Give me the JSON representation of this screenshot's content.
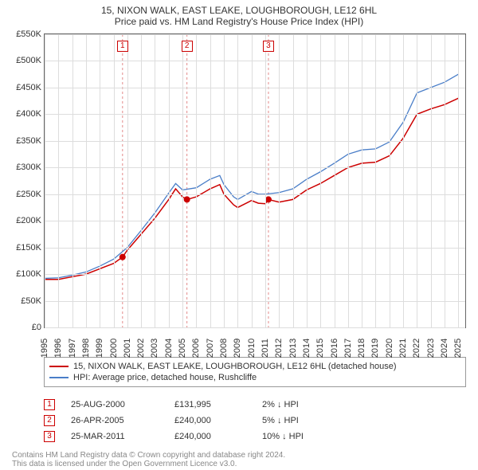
{
  "title_line1": "15, NIXON WALK, EAST LEAKE, LOUGHBOROUGH, LE12 6HL",
  "title_line2": "Price paid vs. HM Land Registry's House Price Index (HPI)",
  "chart": {
    "type": "line",
    "background_color": "#ffffff",
    "grid_color": "#dddddd",
    "border_color": "#666666",
    "xlim": [
      1995,
      2025.5
    ],
    "ylim": [
      0,
      550000
    ],
    "ytick_step": 50000,
    "ytick_labels": [
      "£0",
      "£50K",
      "£100K",
      "£150K",
      "£200K",
      "£250K",
      "£300K",
      "£350K",
      "£400K",
      "£450K",
      "£500K",
      "£550K"
    ],
    "xtick_step": 1,
    "xtick_years": [
      1995,
      1996,
      1997,
      1998,
      1999,
      2000,
      2001,
      2002,
      2003,
      2004,
      2005,
      2006,
      2007,
      2008,
      2009,
      2010,
      2011,
      2012,
      2013,
      2014,
      2015,
      2016,
      2017,
      2018,
      2019,
      2020,
      2021,
      2022,
      2023,
      2024,
      2025
    ],
    "label_fontsize": 11,
    "title_fontsize": 12,
    "series": [
      {
        "name": "property",
        "label": "15, NIXON WALK, EAST LEAKE, LOUGHBOROUGH, LE12 6HL (detached house)",
        "color": "#cc0000",
        "line_width": 1.5,
        "data": [
          [
            1995,
            90000
          ],
          [
            1996,
            90000
          ],
          [
            1997,
            95000
          ],
          [
            1998,
            100000
          ],
          [
            1999,
            110000
          ],
          [
            2000,
            120000
          ],
          [
            2000.65,
            131995
          ],
          [
            2001,
            145000
          ],
          [
            2002,
            175000
          ],
          [
            2003,
            205000
          ],
          [
            2004,
            240000
          ],
          [
            2004.5,
            260000
          ],
          [
            2005,
            245000
          ],
          [
            2005.32,
            240000
          ],
          [
            2006,
            245000
          ],
          [
            2007,
            260000
          ],
          [
            2007.7,
            268000
          ],
          [
            2008,
            250000
          ],
          [
            2008.7,
            230000
          ],
          [
            2009,
            225000
          ],
          [
            2010,
            238000
          ],
          [
            2010.5,
            233000
          ],
          [
            2011,
            232000
          ],
          [
            2011.23,
            240000
          ],
          [
            2012,
            235000
          ],
          [
            2013,
            240000
          ],
          [
            2014,
            258000
          ],
          [
            2015,
            270000
          ],
          [
            2016,
            285000
          ],
          [
            2017,
            300000
          ],
          [
            2018,
            308000
          ],
          [
            2019,
            310000
          ],
          [
            2020,
            322000
          ],
          [
            2021,
            355000
          ],
          [
            2022,
            400000
          ],
          [
            2023,
            410000
          ],
          [
            2024,
            418000
          ],
          [
            2025,
            430000
          ]
        ]
      },
      {
        "name": "hpi",
        "label": "HPI: Average price, detached house, Rushcliffe",
        "color": "#4a7ec8",
        "line_width": 1.3,
        "data": [
          [
            1995,
            92000
          ],
          [
            1996,
            93000
          ],
          [
            1997,
            98000
          ],
          [
            1998,
            104000
          ],
          [
            1999,
            115000
          ],
          [
            2000,
            128000
          ],
          [
            2001,
            150000
          ],
          [
            2002,
            182000
          ],
          [
            2003,
            215000
          ],
          [
            2004,
            252000
          ],
          [
            2004.5,
            270000
          ],
          [
            2005,
            258000
          ],
          [
            2006,
            262000
          ],
          [
            2007,
            278000
          ],
          [
            2007.7,
            285000
          ],
          [
            2008,
            268000
          ],
          [
            2008.7,
            245000
          ],
          [
            2009,
            240000
          ],
          [
            2010,
            255000
          ],
          [
            2010.5,
            250000
          ],
          [
            2011,
            250000
          ],
          [
            2012,
            253000
          ],
          [
            2013,
            260000
          ],
          [
            2014,
            278000
          ],
          [
            2015,
            292000
          ],
          [
            2016,
            308000
          ],
          [
            2017,
            325000
          ],
          [
            2018,
            333000
          ],
          [
            2019,
            335000
          ],
          [
            2020,
            348000
          ],
          [
            2021,
            385000
          ],
          [
            2022,
            440000
          ],
          [
            2023,
            450000
          ],
          [
            2024,
            460000
          ],
          [
            2025,
            475000
          ]
        ]
      }
    ],
    "sale_markers": [
      {
        "n": "1",
        "x": 2000.65,
        "y": 131995,
        "vline_color": "#e38b8b"
      },
      {
        "n": "2",
        "x": 2005.32,
        "y": 240000,
        "vline_color": "#e38b8b"
      },
      {
        "n": "3",
        "x": 2011.23,
        "y": 240000,
        "vline_color": "#e38b8b"
      }
    ],
    "marker_color": "#cc0000",
    "marker_radius": 4
  },
  "legend": {
    "items": [
      {
        "color": "#cc0000",
        "label": "15, NIXON WALK, EAST LEAKE, LOUGHBOROUGH, LE12 6HL (detached house)"
      },
      {
        "color": "#4a7ec8",
        "label": "HPI: Average price, detached house, Rushcliffe"
      }
    ]
  },
  "sales": [
    {
      "n": "1",
      "date": "25-AUG-2000",
      "price": "£131,995",
      "hpi": "2% ↓ HPI"
    },
    {
      "n": "2",
      "date": "26-APR-2005",
      "price": "£240,000",
      "hpi": "5% ↓ HPI"
    },
    {
      "n": "3",
      "date": "25-MAR-2011",
      "price": "£240,000",
      "hpi": "10% ↓ HPI"
    }
  ],
  "attribution": {
    "line1": "Contains HM Land Registry data © Crown copyright and database right 2024.",
    "line2": "This data is licensed under the Open Government Licence v3.0."
  }
}
